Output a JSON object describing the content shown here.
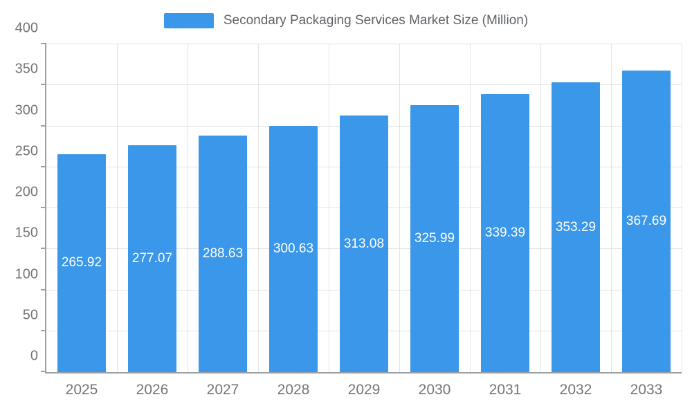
{
  "legend": {
    "label": "Secondary Packaging Services Market Size (Million)"
  },
  "colors": {
    "bar": "#3b97e9",
    "axis": "#9aa0a6",
    "grid": "#e3e3e3",
    "tick_text": "#757575",
    "legend_text": "#5f6368",
    "value_label_text": "#ffffff"
  },
  "chart_data": {
    "type": "bar",
    "title": "Secondary Packaging Services Market Size (Million)",
    "categories": [
      "2025",
      "2026",
      "2027",
      "2028",
      "2029",
      "2030",
      "2031",
      "2032",
      "2033"
    ],
    "values": [
      265.92,
      277.07,
      288.63,
      300.63,
      313.08,
      325.99,
      339.39,
      353.29,
      367.69
    ],
    "value_labels": [
      "265.92",
      "277.07",
      "288.63",
      "300.63",
      "313.08",
      "325.99",
      "339.39",
      "353.29",
      "367.69"
    ],
    "xlabel": "",
    "ylabel": "",
    "ylim": [
      0,
      400
    ],
    "ytick_step": 50,
    "ytick_labels": [
      "0",
      "50",
      "100",
      "150",
      "200",
      "250",
      "300",
      "350",
      "400"
    ],
    "grid": true,
    "legend_position": "top",
    "value_label_position": "center-of-bar"
  }
}
